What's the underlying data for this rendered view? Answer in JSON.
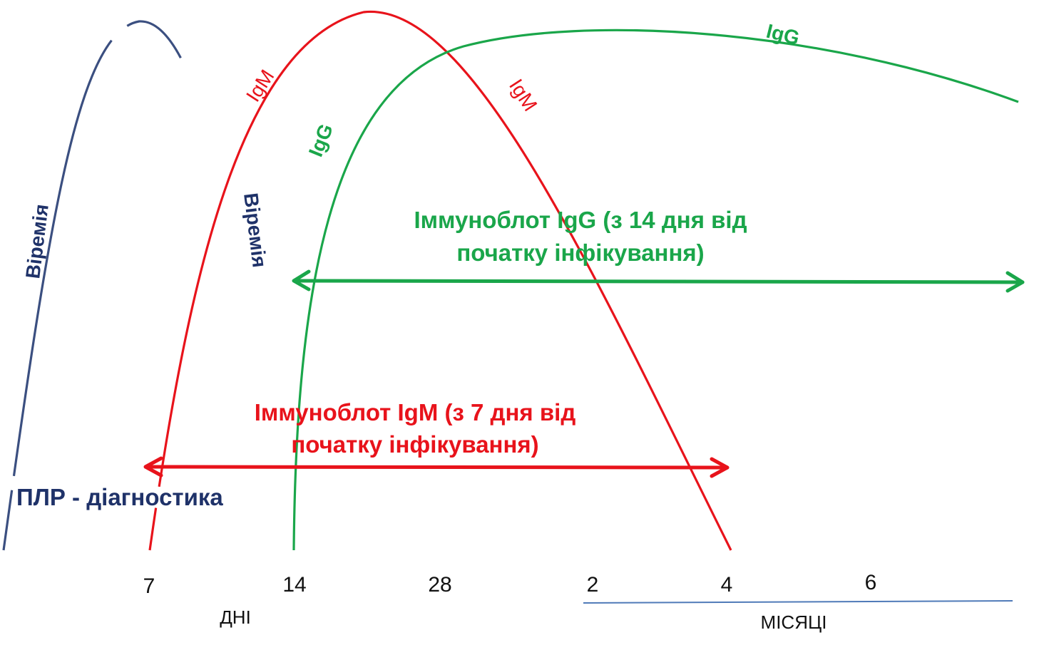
{
  "labels": {
    "viremia_left": "Віремія",
    "viremia_right": "Віремія",
    "igm_rising": "IgM",
    "igm_falling": "IgM",
    "igg_rising": "IgG",
    "igg_top": "IgG",
    "pcr": "ПЛР - діагностика",
    "igg_blot_line1": "Іммуноблот IgG (з 14 дня від",
    "igg_blot_line2": "початку інфікування)",
    "igm_blot_line1": "Іммуноблот IgM (з 7 дня від",
    "igm_blot_line2": "початку інфікування)"
  },
  "axis": {
    "ticks": [
      "7",
      "14",
      "28",
      "2",
      "4",
      "6"
    ],
    "days_label": "ДНІ",
    "months_label": "МІСЯЦІ"
  },
  "colors": {
    "viremia": "#3b4f80",
    "viremia_text": "#1f3269",
    "igm": "#e8131b",
    "igg": "#1aa64a",
    "months_underline": "#4f7ab8"
  }
}
